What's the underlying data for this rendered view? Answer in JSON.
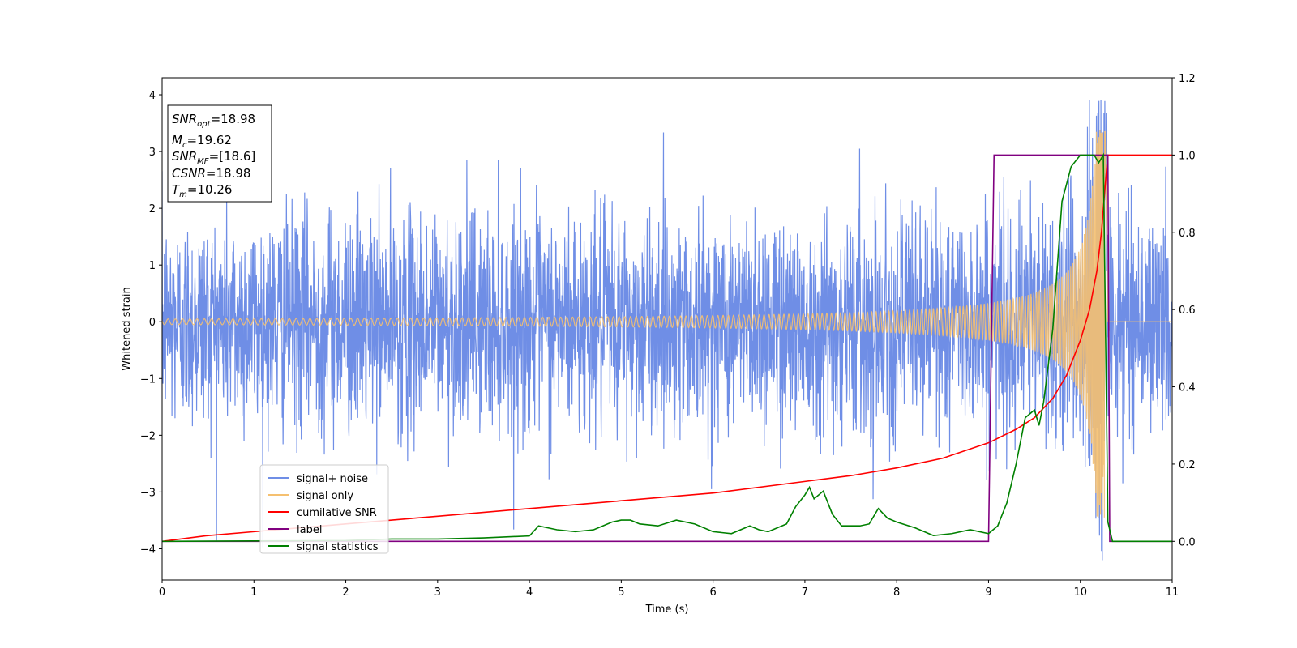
{
  "chart_data": {
    "type": "line",
    "title": "",
    "xlabel": "Time (s)",
    "ylabel": "Whitened strain",
    "xlim": [
      0,
      11
    ],
    "ylim": [
      -4.55,
      4.3
    ],
    "y2lim": [
      -0.1,
      1.2
    ],
    "x_ticks": [
      "0",
      "1",
      "2",
      "3",
      "4",
      "5",
      "6",
      "7",
      "8",
      "9",
      "10",
      "11"
    ],
    "y_ticks": [
      "4",
      "3",
      "2",
      "1",
      "0",
      "−1",
      "−2",
      "−3",
      "−4"
    ],
    "y2_ticks": [
      "1.2",
      "1.0",
      "0.8",
      "0.6",
      "0.4",
      "0.2",
      "0.0"
    ],
    "grid": false,
    "legend_position": "lower-left",
    "annotation": {
      "lines": [
        {
          "name": "SNR",
          "sub": "opt",
          "value": "=18.98"
        },
        {
          "name": "M",
          "sub": "c",
          "value": "=19.62"
        },
        {
          "name": "SNR",
          "sub": "MF",
          "value": "=[18.6]"
        },
        {
          "name": "CSNR",
          "sub": "",
          "value": "=18.98"
        },
        {
          "name": "T",
          "sub": "m",
          "value": "=10.26"
        }
      ]
    },
    "series": [
      {
        "name": "signal+ noise",
        "axis": "left",
        "color": "#6f8ee6",
        "kind": "noise",
        "noise_envelope": [
          -3.6,
          3.9
        ],
        "typical_std": 1.0
      },
      {
        "name": "signal only",
        "axis": "left",
        "color": "#f5c070",
        "kind": "chirp",
        "merger_time": 10.27,
        "end_time": 10.3,
        "peak_amplitude": 3.45,
        "start_amplitude": 0.05
      },
      {
        "name": "cumilative SNR",
        "axis": "right",
        "color": "#ff0000",
        "x": [
          0,
          0.5,
          1,
          2,
          3,
          4,
          5,
          6,
          7,
          7.5,
          8,
          8.5,
          9,
          9.3,
          9.5,
          9.7,
          9.85,
          10.0,
          10.1,
          10.18,
          10.23,
          10.27,
          10.3,
          11
        ],
        "y": [
          0.0,
          0.015,
          0.025,
          0.045,
          0.065,
          0.085,
          0.105,
          0.125,
          0.155,
          0.17,
          0.19,
          0.215,
          0.255,
          0.29,
          0.32,
          0.37,
          0.43,
          0.52,
          0.6,
          0.7,
          0.8,
          0.92,
          1.0,
          1.0
        ]
      },
      {
        "name": "label",
        "axis": "right",
        "color": "#800080",
        "x": [
          0,
          9.0,
          9.06,
          10.3,
          10.32,
          11
        ],
        "y": [
          0.0,
          0.0,
          1.0,
          1.0,
          0.0,
          0.0
        ]
      },
      {
        "name": "signal statistics",
        "axis": "right",
        "color": "#008000",
        "x": [
          0,
          1,
          2,
          2.5,
          3,
          3.5,
          4.0,
          4.1,
          4.2,
          4.3,
          4.5,
          4.7,
          4.9,
          5.0,
          5.1,
          5.2,
          5.4,
          5.6,
          5.8,
          6.0,
          6.2,
          6.4,
          6.5,
          6.6,
          6.7,
          6.8,
          6.9,
          7.0,
          7.05,
          7.1,
          7.2,
          7.3,
          7.4,
          7.6,
          7.7,
          7.8,
          7.9,
          8.0,
          8.2,
          8.4,
          8.6,
          8.8,
          9.0,
          9.1,
          9.2,
          9.3,
          9.4,
          9.5,
          9.55,
          9.6,
          9.7,
          9.8,
          9.9,
          10.0,
          10.05,
          10.1,
          10.15,
          10.2,
          10.25,
          10.3,
          10.35,
          11
        ],
        "y": [
          0.0,
          0.001,
          0.002,
          0.006,
          0.006,
          0.009,
          0.014,
          0.04,
          0.035,
          0.03,
          0.025,
          0.03,
          0.05,
          0.055,
          0.055,
          0.045,
          0.04,
          0.055,
          0.045,
          0.025,
          0.02,
          0.04,
          0.03,
          0.025,
          0.035,
          0.045,
          0.09,
          0.12,
          0.14,
          0.11,
          0.13,
          0.07,
          0.04,
          0.04,
          0.045,
          0.085,
          0.06,
          0.05,
          0.035,
          0.015,
          0.02,
          0.03,
          0.02,
          0.04,
          0.1,
          0.2,
          0.32,
          0.34,
          0.3,
          0.36,
          0.55,
          0.88,
          0.97,
          1.0,
          1.0,
          1.0,
          1.0,
          0.98,
          1.0,
          0.05,
          0.0,
          0.0
        ]
      }
    ]
  }
}
